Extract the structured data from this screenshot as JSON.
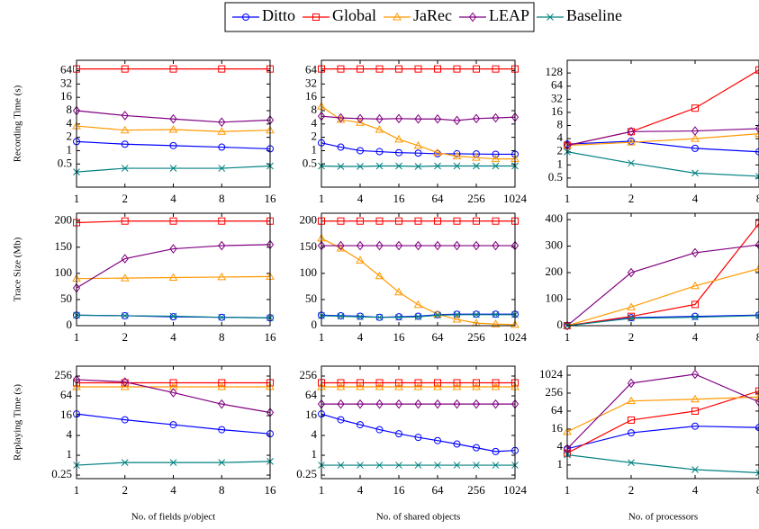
{
  "chart_data": [
    {
      "type": "line",
      "ylabel": "Recording Time (s)",
      "xscale": "log",
      "yscale": "log",
      "x": [
        1,
        2,
        4,
        8,
        16
      ],
      "xlim": [
        1,
        16
      ],
      "xticks": [
        1,
        2,
        4,
        8,
        16
      ],
      "ylim": [
        0.15,
        110
      ],
      "yticks": [
        0.5,
        1,
        2,
        4,
        8,
        16,
        32,
        64
      ],
      "series": [
        {
          "name": "Ditto",
          "color": "#0000ff",
          "values": [
            1.6,
            1.4,
            1.3,
            1.2,
            1.1
          ]
        },
        {
          "name": "Global",
          "color": "#ff0000",
          "values": [
            70,
            70,
            70,
            70,
            70
          ]
        },
        {
          "name": "JaRec",
          "color": "#ff9900",
          "values": [
            3.6,
            2.9,
            3.0,
            2.7,
            2.9
          ]
        },
        {
          "name": "LEAP",
          "color": "#800080",
          "values": [
            8,
            6.2,
            5.2,
            4.4,
            4.9
          ]
        },
        {
          "name": "Baseline",
          "color": "#008080",
          "values": [
            0.33,
            0.4,
            0.4,
            0.4,
            0.45
          ]
        }
      ]
    },
    {
      "type": "line",
      "xscale": "log",
      "yscale": "log",
      "x": [
        1,
        2,
        4,
        8,
        16,
        32,
        64,
        128,
        256,
        512,
        1024
      ],
      "xlim": [
        1,
        1024
      ],
      "xticks": [
        1,
        4,
        16,
        64,
        256,
        1024
      ],
      "ylim": [
        0.15,
        110
      ],
      "yticks": [
        0.5,
        1,
        2,
        4,
        8,
        16,
        32,
        64
      ],
      "series": [
        {
          "name": "Ditto",
          "color": "#0000ff",
          "values": [
            1.5,
            1.2,
            1.0,
            0.95,
            0.9,
            0.88,
            0.85,
            0.85,
            0.84,
            0.83,
            0.83
          ]
        },
        {
          "name": "Global",
          "color": "#ff0000",
          "values": [
            70,
            70,
            70,
            70,
            70,
            70,
            70,
            70,
            70,
            70,
            70
          ]
        },
        {
          "name": "JaRec",
          "color": "#ff9900",
          "values": [
            10,
            5,
            4.3,
            3,
            1.8,
            1.3,
            0.9,
            0.75,
            0.7,
            0.65,
            0.65
          ]
        },
        {
          "name": "LEAP",
          "color": "#800080",
          "values": [
            6,
            5.5,
            5.3,
            5.2,
            5.3,
            5.2,
            5.2,
            4.8,
            5.3,
            5.5,
            5.7
          ]
        },
        {
          "name": "Baseline",
          "color": "#008080",
          "values": [
            0.45,
            0.44,
            0.44,
            0.45,
            0.45,
            0.44,
            0.45,
            0.45,
            0.45,
            0.45,
            0.45
          ]
        }
      ]
    },
    {
      "type": "line",
      "xscale": "log",
      "yscale": "log",
      "x": [
        1,
        2,
        4,
        8
      ],
      "xlim": [
        1,
        8
      ],
      "xticks": [
        1,
        2,
        4,
        8
      ],
      "ylim": [
        0.31,
        250
      ],
      "yticks": [
        0.5,
        1,
        2,
        4,
        8,
        16,
        32,
        64,
        128
      ],
      "series": [
        {
          "name": "Ditto",
          "color": "#0000ff",
          "values": [
            3,
            3.5,
            2.4,
            2
          ]
        },
        {
          "name": "Global",
          "color": "#ff0000",
          "values": [
            2.8,
            5.8,
            20,
            150
          ]
        },
        {
          "name": "JaRec",
          "color": "#ff9900",
          "values": [
            2.8,
            3.3,
            4,
            5.2
          ]
        },
        {
          "name": "LEAP",
          "color": "#800080",
          "values": [
            2.8,
            5.8,
            6,
            6.8
          ]
        },
        {
          "name": "Baseline",
          "color": "#008080",
          "values": [
            2,
            1.1,
            0.65,
            0.55
          ]
        }
      ]
    },
    {
      "type": "line",
      "ylabel": "Trace Size (Mb)",
      "xscale": "log",
      "yscale": "linear",
      "x": [
        1,
        2,
        4,
        8,
        16
      ],
      "xlim": [
        1,
        16
      ],
      "xticks": [
        1,
        2,
        4,
        8,
        16
      ],
      "ylim": [
        0,
        215
      ],
      "yticks": [
        0,
        50,
        100,
        150,
        200
      ],
      "series": [
        {
          "name": "Ditto",
          "color": "#0000ff",
          "values": [
            20,
            19,
            17,
            16,
            15
          ]
        },
        {
          "name": "Global",
          "color": "#ff0000",
          "values": [
            197,
            200,
            200,
            200,
            200
          ]
        },
        {
          "name": "JaRec",
          "color": "#ff9900",
          "values": [
            90,
            91,
            92,
            93,
            94
          ]
        },
        {
          "name": "LEAP",
          "color": "#800080",
          "values": [
            72,
            128,
            147,
            153,
            155
          ]
        },
        {
          "name": "Baseline",
          "color": "#008080",
          "values": [
            20,
            19,
            18,
            16,
            15
          ]
        }
      ]
    },
    {
      "type": "line",
      "xscale": "log",
      "yscale": "linear",
      "x": [
        1,
        2,
        4,
        8,
        16,
        32,
        64,
        128,
        256,
        512,
        1024
      ],
      "xlim": [
        1,
        1024
      ],
      "xticks": [
        1,
        4,
        16,
        64,
        256,
        1024
      ],
      "ylim": [
        0,
        215
      ],
      "yticks": [
        0,
        50,
        100,
        150,
        200
      ],
      "series": [
        {
          "name": "Ditto",
          "color": "#0000ff",
          "values": [
            20,
            19,
            18,
            16,
            17,
            18,
            21,
            22,
            22,
            22,
            22
          ]
        },
        {
          "name": "Global",
          "color": "#ff0000",
          "values": [
            200,
            200,
            200,
            200,
            200,
            200,
            200,
            200,
            200,
            200,
            200
          ]
        },
        {
          "name": "JaRec",
          "color": "#ff9900",
          "values": [
            167,
            148,
            125,
            95,
            64,
            40,
            22,
            12,
            5,
            3,
            2
          ]
        },
        {
          "name": "LEAP",
          "color": "#800080",
          "values": [
            153,
            153,
            153,
            153,
            153,
            153,
            153,
            153,
            153,
            153,
            153
          ]
        },
        {
          "name": "Baseline",
          "color": "#008080",
          "values": [
            19,
            18,
            17,
            16,
            16,
            17,
            20,
            21,
            21,
            21,
            21
          ]
        }
      ]
    },
    {
      "type": "line",
      "xscale": "log",
      "yscale": "linear",
      "x": [
        1,
        2,
        4,
        8
      ],
      "xlim": [
        1,
        8
      ],
      "xticks": [
        1,
        2,
        4,
        8
      ],
      "ylim": [
        0,
        424
      ],
      "yticks": [
        0,
        100,
        200,
        300,
        400
      ],
      "series": [
        {
          "name": "Ditto",
          "color": "#0000ff",
          "values": [
            0,
            30,
            35,
            40
          ]
        },
        {
          "name": "Global",
          "color": "#ff0000",
          "values": [
            0,
            35,
            80,
            385
          ]
        },
        {
          "name": "JaRec",
          "color": "#ff9900",
          "values": [
            0,
            70,
            150,
            215
          ]
        },
        {
          "name": "LEAP",
          "color": "#800080",
          "values": [
            0,
            200,
            275,
            305
          ]
        },
        {
          "name": "Baseline",
          "color": "#008080",
          "values": [
            0,
            28,
            32,
            38
          ]
        }
      ]
    },
    {
      "type": "line",
      "ylabel": "Replaying Time (s)",
      "xlabel": "No. of fields p/object",
      "xscale": "log",
      "yscale": "log",
      "x": [
        1,
        2,
        4,
        8,
        16
      ],
      "xlim": [
        1,
        16
      ],
      "xticks": [
        1,
        2,
        4,
        8,
        16
      ],
      "ylim": [
        0.195,
        512
      ],
      "yticks": [
        0.25,
        1,
        4,
        16,
        64,
        256
      ],
      "series": [
        {
          "name": "Ditto",
          "color": "#0000ff",
          "values": [
            18,
            12,
            8.5,
            6,
            4.5
          ]
        },
        {
          "name": "Global",
          "color": "#ff0000",
          "values": [
            160,
            160,
            160,
            160,
            160
          ]
        },
        {
          "name": "JaRec",
          "color": "#ff9900",
          "values": [
            120,
            120,
            120,
            120,
            120
          ]
        },
        {
          "name": "LEAP",
          "color": "#800080",
          "values": [
            200,
            170,
            80,
            36,
            20
          ]
        },
        {
          "name": "Baseline",
          "color": "#008080",
          "values": [
            0.5,
            0.6,
            0.6,
            0.6,
            0.65
          ]
        }
      ]
    },
    {
      "type": "line",
      "xlabel": "No. of shared objects",
      "xscale": "log",
      "yscale": "log",
      "x": [
        1,
        2,
        4,
        8,
        16,
        32,
        64,
        128,
        256,
        512,
        1024
      ],
      "xlim": [
        1,
        1024
      ],
      "xticks": [
        1,
        4,
        16,
        64,
        256,
        1024
      ],
      "ylim": [
        0.195,
        512
      ],
      "yticks": [
        0.25,
        1,
        4,
        16,
        64,
        256
      ],
      "series": [
        {
          "name": "Ditto",
          "color": "#0000ff",
          "values": [
            18,
            12,
            8.5,
            6,
            4.5,
            3.5,
            2.8,
            2.2,
            1.7,
            1.3,
            1.4
          ]
        },
        {
          "name": "Global",
          "color": "#ff0000",
          "values": [
            160,
            160,
            160,
            160,
            160,
            160,
            160,
            160,
            160,
            160,
            160
          ]
        },
        {
          "name": "JaRec",
          "color": "#ff9900",
          "values": [
            120,
            120,
            120,
            120,
            120,
            120,
            120,
            120,
            120,
            120,
            120
          ]
        },
        {
          "name": "LEAP",
          "color": "#800080",
          "values": [
            36,
            36,
            36,
            36,
            36,
            36,
            36,
            36,
            36,
            36,
            36
          ]
        },
        {
          "name": "Baseline",
          "color": "#008080",
          "values": [
            0.5,
            0.5,
            0.5,
            0.5,
            0.5,
            0.5,
            0.5,
            0.5,
            0.5,
            0.5,
            0.5
          ]
        }
      ]
    },
    {
      "type": "line",
      "xlabel": "No. of processors",
      "xscale": "log",
      "yscale": "log",
      "x": [
        1,
        2,
        4,
        8
      ],
      "xlim": [
        1,
        8
      ],
      "xticks": [
        1,
        2,
        4,
        8
      ],
      "ylim": [
        0.35,
        2048
      ],
      "yticks": [
        1,
        4,
        16,
        64,
        256,
        1024
      ],
      "series": [
        {
          "name": "Ditto",
          "color": "#0000ff",
          "values": [
            3.5,
            12,
            20,
            18
          ]
        },
        {
          "name": "Global",
          "color": "#ff0000",
          "values": [
            2.5,
            32,
            64,
            300
          ]
        },
        {
          "name": "JaRec",
          "color": "#ff9900",
          "values": [
            13,
            140,
            160,
            190
          ]
        },
        {
          "name": "LEAP",
          "color": "#800080",
          "values": [
            3.5,
            550,
            1100,
            130
          ]
        },
        {
          "name": "Baseline",
          "color": "#008080",
          "values": [
            2.2,
            1.2,
            0.7,
            0.55
          ]
        }
      ]
    }
  ]
}
